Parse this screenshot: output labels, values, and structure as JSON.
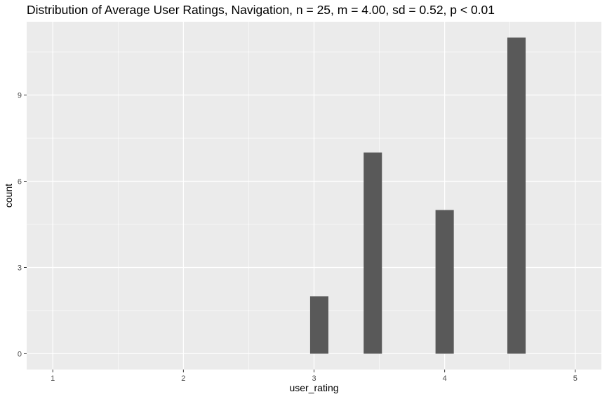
{
  "chart_data": {
    "type": "bar",
    "title": "Distribution of Average User Ratings, Navigation, n = 25, m = 4.00, sd = 0.52, p < 0.01",
    "xlabel": "user_rating",
    "ylabel": "count",
    "x_ticks": [
      1,
      2,
      3,
      4,
      5
    ],
    "y_ticks": [
      0,
      3,
      6,
      9
    ],
    "xlim": [
      0.8,
      5.2
    ],
    "ylim": [
      -0.55,
      11.55
    ],
    "bar_width": 0.14,
    "bars": [
      {
        "x": 3.04,
        "count": 2
      },
      {
        "x": 3.45,
        "count": 7
      },
      {
        "x": 4.0,
        "count": 5
      },
      {
        "x": 4.55,
        "count": 11
      }
    ],
    "panel_background": "#ebebeb",
    "grid_color": "#ffffff",
    "bar_color": "#595959",
    "grid": true
  }
}
